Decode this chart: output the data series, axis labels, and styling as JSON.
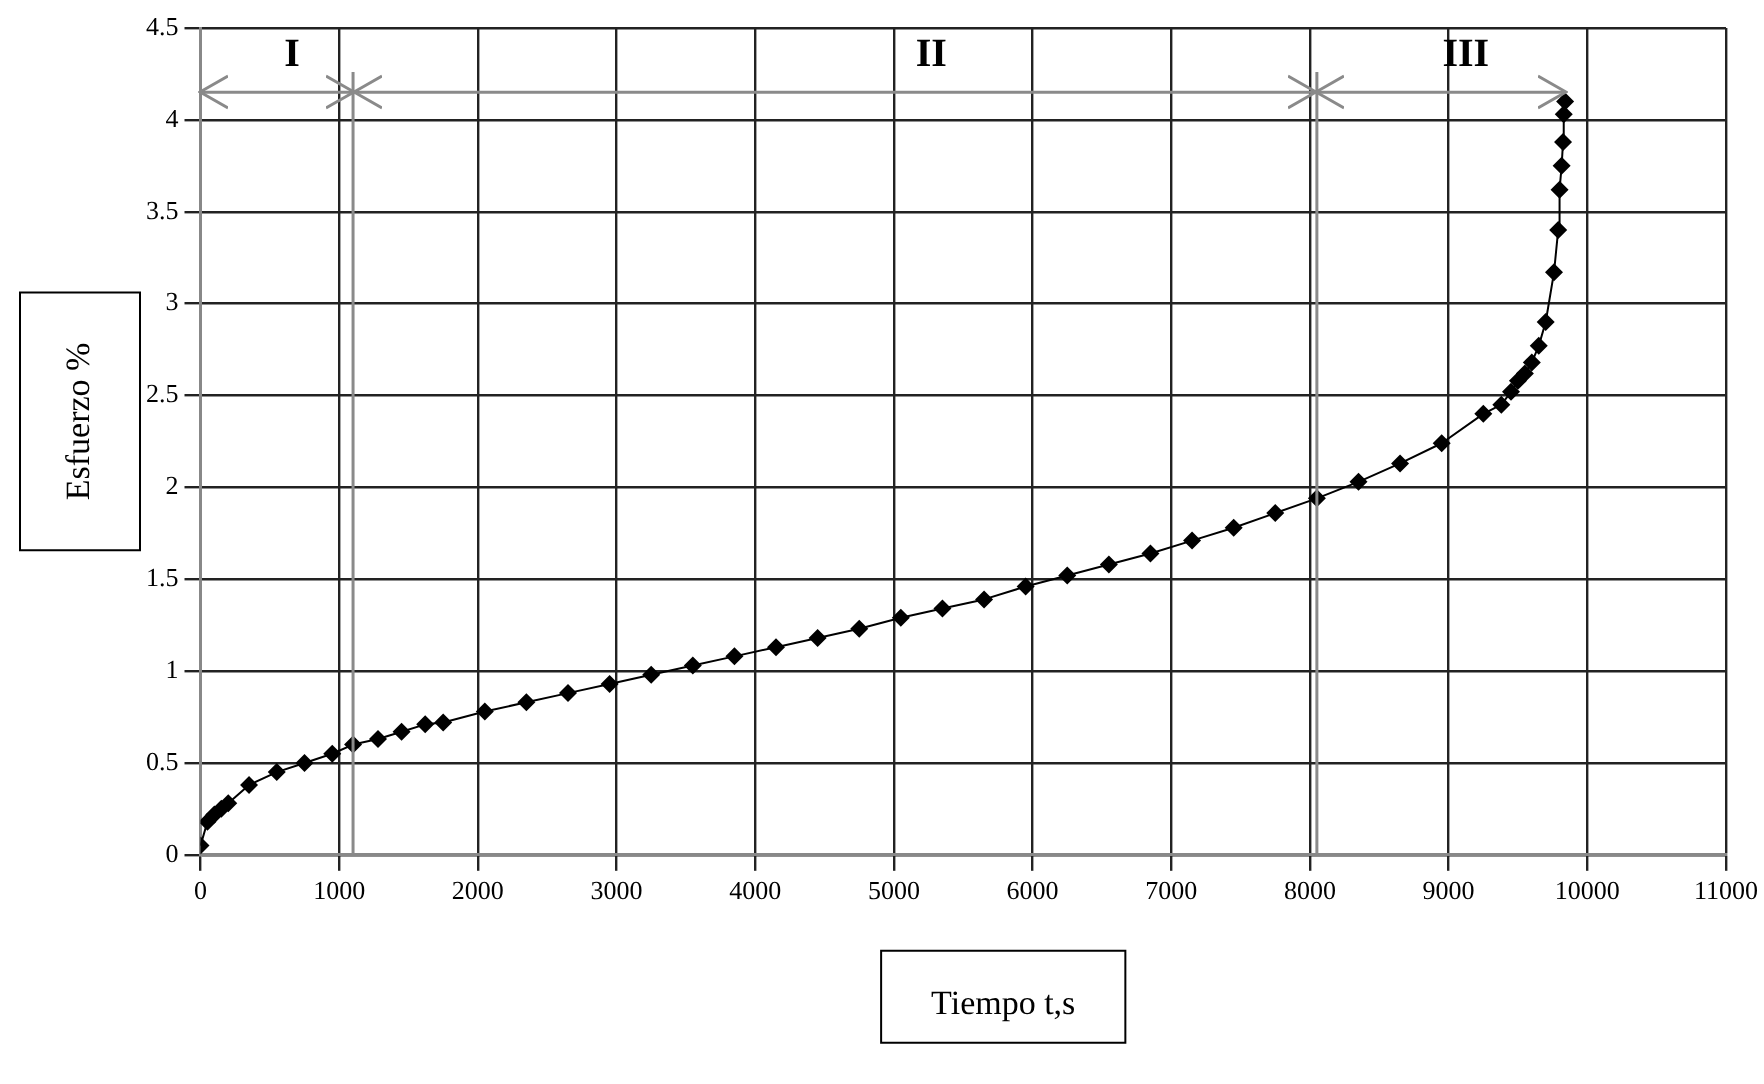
{
  "chart_data": {
    "type": "line",
    "xlabel": "Tiempo t,s",
    "ylabel": "Esfuerzo %",
    "x": [
      0,
      50,
      100,
      150,
      200,
      350,
      550,
      750,
      950,
      1100,
      1280,
      1450,
      1620,
      1750,
      2050,
      2350,
      2650,
      2950,
      3250,
      3550,
      3850,
      4150,
      4450,
      4750,
      5050,
      5350,
      5650,
      5950,
      6250,
      6550,
      6850,
      7150,
      7450,
      7750,
      8050,
      8350,
      8650,
      8950,
      9250,
      9380,
      9450,
      9500,
      9550,
      9600,
      9650,
      9700,
      9760,
      9790,
      9800,
      9815,
      9825,
      9830,
      9840
    ],
    "values": [
      0.05,
      0.18,
      0.22,
      0.25,
      0.28,
      0.38,
      0.45,
      0.5,
      0.55,
      0.6,
      0.63,
      0.67,
      0.71,
      0.72,
      0.78,
      0.83,
      0.88,
      0.93,
      0.98,
      1.03,
      1.08,
      1.13,
      1.18,
      1.23,
      1.29,
      1.34,
      1.39,
      1.46,
      1.52,
      1.58,
      1.64,
      1.71,
      1.78,
      1.86,
      1.94,
      2.03,
      2.13,
      2.24,
      2.4,
      2.45,
      2.52,
      2.58,
      2.62,
      2.68,
      2.77,
      2.9,
      3.17,
      3.4,
      3.62,
      3.75,
      3.88,
      4.03,
      4.1
    ],
    "color": "#000000",
    "marker": "diamond",
    "line_style": "solid",
    "grid": true,
    "legend": false,
    "xlim": [
      0,
      11000
    ],
    "xticks": [
      0,
      1000,
      2000,
      3000,
      4000,
      5000,
      6000,
      7000,
      8000,
      9000,
      10000,
      11000
    ],
    "ylim": [
      0,
      4.5
    ],
    "yticks": [
      0,
      0.5,
      1,
      1.5,
      2,
      2.5,
      3,
      3.5,
      4,
      4.5
    ],
    "ref_lines": [
      {
        "axis": "x",
        "value": 1100,
        "color": "#8a8a8a"
      },
      {
        "axis": "x",
        "value": 8050,
        "color": "#8a8a8a"
      },
      {
        "axis": "y",
        "value": 4.15,
        "color": "#8a8a8a"
      }
    ],
    "annotations": [
      "I",
      "II",
      "III"
    ]
  }
}
